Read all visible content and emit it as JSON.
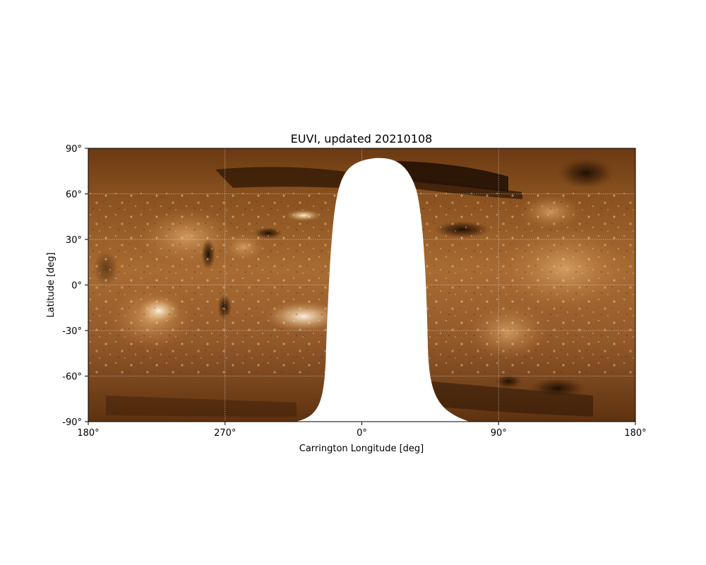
{
  "figure": {
    "title": "EUVI, updated 20210108",
    "xlabel": "Carrington Longitude [deg]",
    "ylabel": "Latitude [deg]",
    "x_tick_labels": [
      "180°",
      "270°",
      "0°",
      "90°",
      "180°"
    ],
    "y_tick_labels": [
      "90°",
      "60°",
      "30°",
      "0°",
      "-30°",
      "-60°",
      "-90°"
    ]
  },
  "map": {
    "projection": "plate carrée (Carrington)",
    "colormap": "sdo/aia 193 style copper-brown",
    "grid": true,
    "missing_data_color": "#ffffff",
    "colors": {
      "dark": "#2a1605",
      "mid": "#8e5420",
      "light": "#c98d4f",
      "bright": "#f5e0c3"
    }
  }
}
